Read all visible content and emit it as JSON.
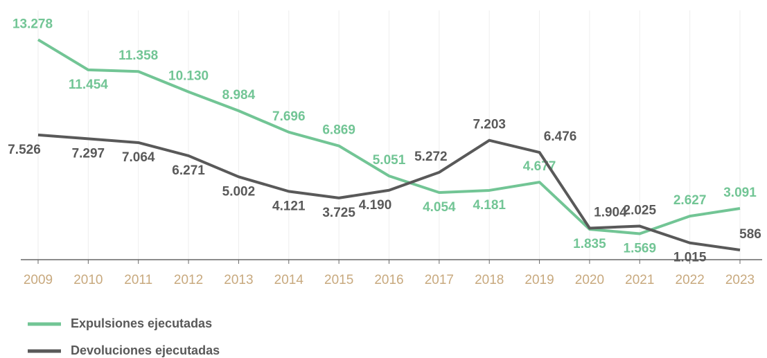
{
  "chart_data": {
    "type": "line",
    "categories": [
      "2009",
      "2010",
      "2011",
      "2012",
      "2013",
      "2014",
      "2015",
      "2016",
      "2017",
      "2018",
      "2019",
      "2020",
      "2021",
      "2022",
      "2023"
    ],
    "ylim": [
      0,
      14000
    ],
    "grid": true,
    "legend": "bottom-left",
    "series": [
      {
        "name": "Expulsiones ejecutadas",
        "color": "#72c595",
        "values": [
          13278,
          11454,
          11358,
          10130,
          8984,
          7696,
          6869,
          5051,
          4054,
          4181,
          4677,
          1835,
          1569,
          2627,
          3091
        ],
        "value_labels": [
          "13.278",
          "11.454",
          "11.358",
          "10.130",
          "8.984",
          "7.696",
          "6.869",
          "5.051",
          "4.054",
          "4.181",
          "4.677",
          "1.835",
          "1.569",
          "2.627",
          "3.091"
        ]
      },
      {
        "name": "Devoluciones ejecutadas",
        "color": "#595959",
        "values": [
          7526,
          7297,
          7064,
          6271,
          5002,
          4121,
          3725,
          4190,
          5272,
          7203,
          6476,
          1904,
          2025,
          1015,
          586
        ],
        "value_labels": [
          "7.526",
          "7.297",
          "7.064",
          "6.271",
          "5.002",
          "4.121",
          "3.725",
          "4.190",
          "5.272",
          "7.203",
          "6.476",
          "1.904",
          "2.025",
          "1.015",
          "586"
        ]
      }
    ]
  }
}
